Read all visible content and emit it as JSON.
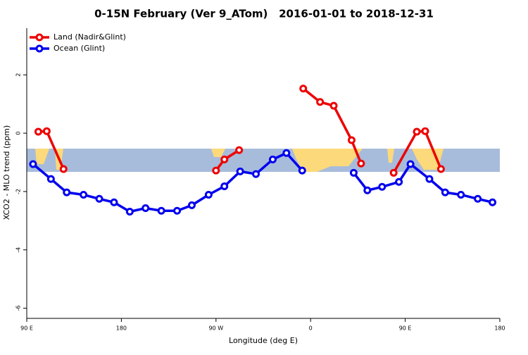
{
  "chart_data": {
    "type": "line",
    "title": "0-15N February (Ver 9_ATom)   2016-01-01 to 2018-12-31",
    "x_label": "Longitude (deg E)",
    "y_label": "XCO2 - MLO trend (ppm)",
    "xlim": [
      90,
      540
    ],
    "xticks": [
      {
        "value": 90,
        "label": "90 E"
      },
      180,
      {
        "value": 270,
        "label": "90 W"
      },
      {
        "value": 360,
        "label": "0"
      },
      {
        "value": 450,
        "label": "90 E"
      },
      {
        "value": 540,
        "label": "180"
      }
    ],
    "ylim": [
      -6.3,
      3.6
    ],
    "yticks": [
      -6,
      -4,
      -2,
      0,
      2
    ],
    "legend": "top-left",
    "series": [
      {
        "name": "Land (Nadir&Glint)",
        "color": "#ee0000",
        "x": [
          101,
          109,
          125,
          null,
          270,
          278,
          292,
          null,
          353,
          369,
          382,
          399,
          408,
          null,
          439,
          461,
          469,
          484
        ],
        "values": [
          0.05,
          0.07,
          -1.23,
          null,
          -1.28,
          -0.9,
          -0.58,
          null,
          1.53,
          1.07,
          0.94,
          -0.24,
          -1.04,
          null,
          -1.36,
          0.05,
          0.07,
          -1.23
        ]
      },
      {
        "name": "Ocean (Glint)",
        "color": "#0000ee",
        "x": [
          96,
          113,
          128,
          144,
          159,
          173,
          188,
          203,
          218,
          233,
          247,
          263,
          278,
          293,
          308,
          324,
          337,
          352,
          null,
          401,
          414,
          428,
          444,
          455,
          473,
          488,
          503,
          519,
          533
        ],
        "values": [
          -1.06,
          -1.57,
          -2.03,
          -2.11,
          -2.25,
          -2.37,
          -2.69,
          -2.57,
          -2.66,
          -2.66,
          -2.47,
          -2.11,
          -1.82,
          -1.31,
          -1.4,
          -0.9,
          -0.68,
          -1.28,
          null,
          -1.36,
          -1.96,
          -1.84,
          -1.67,
          -1.06,
          -1.57,
          -2.03,
          -2.11,
          -2.25,
          -2.37
        ]
      }
    ]
  }
}
